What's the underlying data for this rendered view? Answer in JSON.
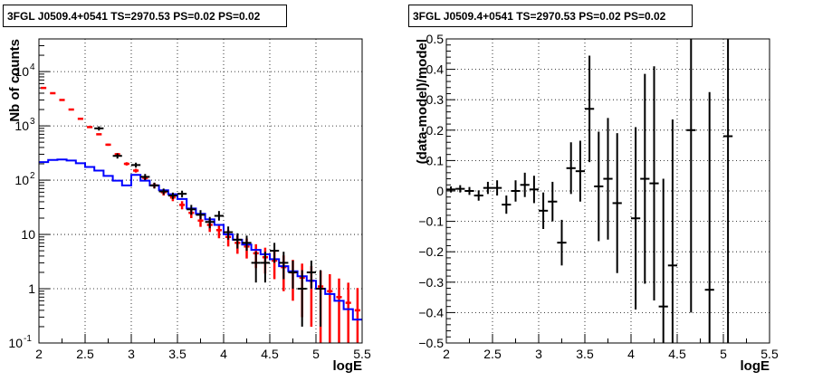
{
  "colors": {
    "data": "#000000",
    "model": "#0000ff",
    "counts_red": "#ff0000"
  },
  "chart_data": [
    {
      "type": "line",
      "title": "3FGL J0509.4+0541 TS=2970.53 PS=0.02 PS=0.02",
      "xlabel": "logE",
      "ylabel": "Nb of counts",
      "xlim": [
        2,
        5.5
      ],
      "ylim": [
        0.1,
        40000
      ],
      "yscale": "log",
      "grid": true,
      "x_ticks": [
        "2",
        "2.5",
        "3",
        "3.5",
        "4",
        "4.5",
        "5",
        "5.5"
      ],
      "y_ticks": [
        {
          "value": 0.1,
          "label": "10",
          "exp": "-1"
        },
        {
          "value": 1,
          "label": "1",
          "exp": ""
        },
        {
          "value": 10,
          "label": "10",
          "exp": ""
        },
        {
          "value": 100,
          "label": "10",
          "exp": "2"
        },
        {
          "value": 1000,
          "label": "10",
          "exp": "3"
        },
        {
          "value": 10000,
          "label": "10",
          "exp": "4"
        }
      ],
      "bin_width": 0.1,
      "series": [
        {
          "key": "counts_red",
          "x": [
            2.05,
            2.15,
            2.25,
            2.35,
            2.45,
            2.55,
            2.65,
            2.75,
            2.85,
            2.95,
            3.05,
            3.15,
            3.25,
            3.35,
            3.45,
            3.55,
            3.65,
            3.75,
            3.85,
            3.95,
            4.05,
            4.15,
            4.25,
            4.35,
            4.45,
            4.55,
            4.65,
            4.75,
            4.85,
            4.95,
            5.05,
            5.15,
            5.25,
            5.35,
            5.45
          ],
          "y": [
            5000,
            4000,
            3000,
            2000,
            1350,
            950,
            700,
            450,
            300,
            200,
            150,
            110,
            80,
            60,
            48,
            35,
            25,
            18,
            15,
            12,
            9,
            7,
            6,
            4.5,
            3.8,
            3.3,
            2.5,
            2.0,
            1.6,
            1.4,
            1.1,
            0.9,
            0.7,
            0.55,
            0.4
          ],
          "yerr": [
            70,
            63,
            55,
            45,
            37,
            31,
            26,
            21,
            17,
            14,
            12,
            10,
            9,
            8,
            7,
            6,
            5,
            4.2,
            3.9,
            3.5,
            3,
            2.6,
            2.4,
            2.1,
            1.9,
            1.8,
            1.6,
            1.4,
            1.3,
            1.2,
            1.05,
            0.95,
            0.84,
            0.74,
            0.63
          ]
        },
        {
          "key": "model",
          "x": [
            2.05,
            2.15,
            2.25,
            2.35,
            2.45,
            2.55,
            2.65,
            2.75,
            2.85,
            2.95,
            3.05,
            3.15,
            3.25,
            3.35,
            3.45,
            3.55,
            3.65,
            3.75,
            3.85,
            3.95,
            4.05,
            4.15,
            4.25,
            4.35,
            4.45,
            4.55,
            4.65,
            4.75,
            4.85,
            4.95,
            5.05,
            5.15,
            5.25,
            5.35,
            5.45
          ],
          "y": [
            215,
            235,
            240,
            230,
            205,
            175,
            150,
            120,
            98,
            80,
            125,
            98,
            80,
            65,
            55,
            45,
            30,
            24,
            19,
            15,
            10,
            8,
            6.5,
            5.2,
            4.3,
            3.5,
            2.6,
            2.1,
            1.7,
            1.4,
            1.0,
            0.8,
            0.6,
            0.42,
            0.27
          ]
        },
        {
          "key": "data",
          "x": [
            2.65,
            2.85,
            3.05,
            3.15,
            3.25,
            3.35,
            3.45,
            3.55,
            3.65,
            3.75,
            3.85,
            3.95,
            4.05,
            4.15,
            4.25,
            4.35,
            4.45,
            4.55,
            4.65,
            4.75,
            4.85,
            4.95,
            5.05
          ],
          "y": [
            900,
            280,
            190,
            115,
            80,
            62,
            52,
            56,
            29,
            23,
            17,
            22,
            11,
            8,
            7,
            3,
            3,
            5,
            3,
            2,
            1,
            2,
            1
          ],
          "ylo": [
            820,
            250,
            170,
            100,
            70,
            54,
            45,
            48,
            23,
            19,
            13,
            18,
            8,
            5.5,
            5,
            1.3,
            1.3,
            3,
            1.5,
            1,
            0.2,
            1,
            0.2
          ],
          "yhi": [
            980,
            310,
            210,
            130,
            90,
            70,
            59,
            64,
            35,
            28,
            21,
            27,
            14,
            10.5,
            9.5,
            4.8,
            4.8,
            7,
            4.8,
            3.3,
            2.2,
            3.3,
            2.2
          ]
        }
      ]
    },
    {
      "type": "scatter",
      "title": "3FGL J0509.4+0541 TS=2970.53 PS=0.02 PS=0.02",
      "xlabel": "logE",
      "ylabel": "(data-model)/model",
      "xlim": [
        2,
        5.5
      ],
      "ylim": [
        -0.5,
        0.5
      ],
      "grid": true,
      "x_ticks": [
        "2",
        "2.5",
        "3",
        "3.5",
        "4",
        "4.5",
        "5",
        "5.5"
      ],
      "y_ticks": [
        "−0.5",
        "−0.4",
        "−0.3",
        "−0.2",
        "−0.1",
        "0",
        "0.1",
        "0.2",
        "0.3",
        "0.4",
        "0.5"
      ],
      "bin_width": 0.1,
      "points": {
        "x": [
          2.05,
          2.15,
          2.25,
          2.35,
          2.45,
          2.55,
          2.65,
          2.75,
          2.85,
          2.95,
          3.05,
          3.15,
          3.25,
          3.35,
          3.45,
          3.55,
          3.65,
          3.75,
          3.85,
          4.05,
          4.15,
          4.25,
          4.35,
          4.45,
          4.65,
          4.85,
          5.05
        ],
        "y": [
          0.005,
          0.007,
          0.0,
          -0.015,
          0.01,
          0.01,
          -0.045,
          0.0,
          0.02,
          0.005,
          -0.065,
          -0.035,
          -0.17,
          0.075,
          0.065,
          0.27,
          0.015,
          0.04,
          -0.04,
          -0.09,
          0.04,
          0.025,
          -0.38,
          -0.245,
          0.2,
          -0.325,
          0.18
        ],
        "yerr": [
          0.01,
          0.012,
          0.013,
          0.017,
          0.02,
          0.025,
          0.03,
          0.035,
          0.04,
          0.045,
          0.06,
          0.065,
          0.075,
          0.085,
          0.1,
          0.175,
          0.18,
          0.2,
          0.23,
          0.3,
          0.345,
          0.385,
          0.42,
          0.48,
          0.6,
          0.65,
          0.7
        ]
      }
    }
  ]
}
